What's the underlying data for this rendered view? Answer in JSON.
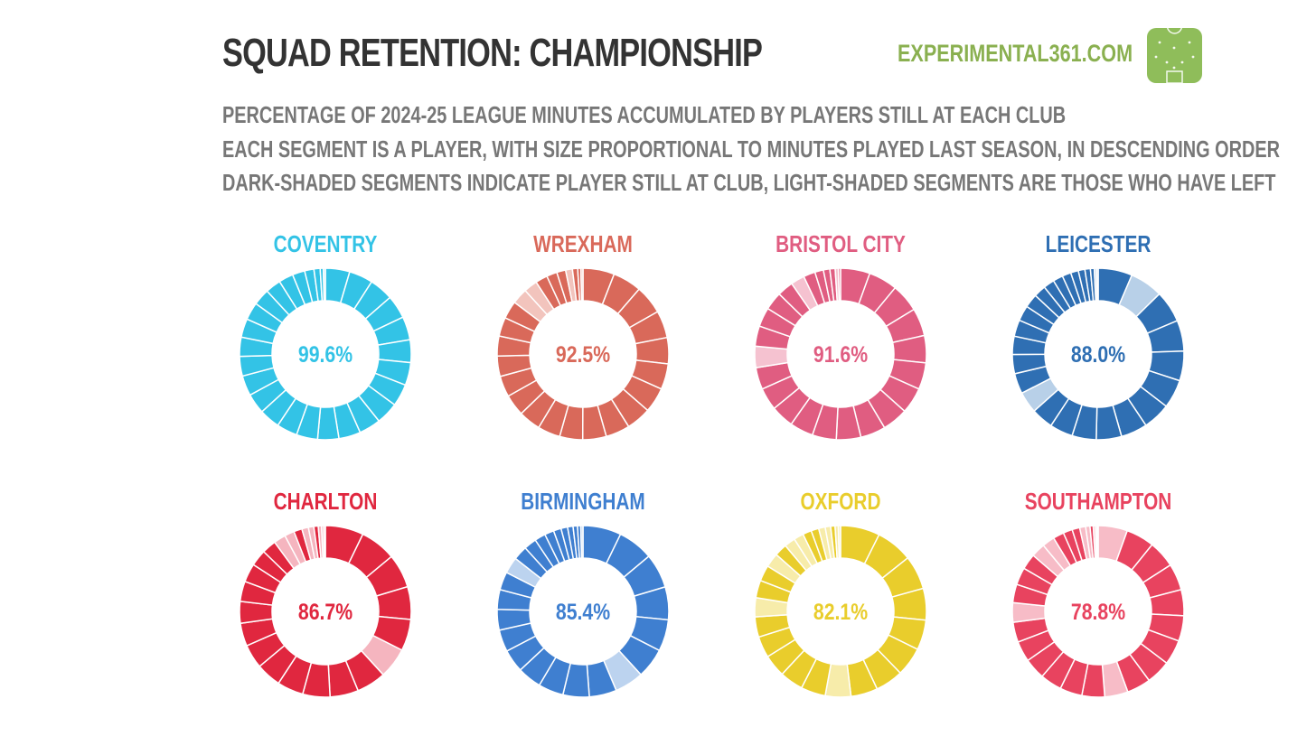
{
  "header": {
    "title": "SQUAD RETENTION: CHAMPIONSHIP",
    "brand": "EXPERIMENTAL361.COM",
    "subtitle_lines": [
      "PERCENTAGE OF 2024-25 LEAGUE MINUTES ACCUMULATED BY PLAYERS STILL AT EACH CLUB",
      "EACH SEGMENT IS A PLAYER, WITH SIZE PROPORTIONAL TO MINUTES PLAYED LAST SEASON, IN DESCENDING ORDER",
      "DARK-SHADED SEGMENTS INDICATE PLAYER STILL AT CLUB, LIGHT-SHADED SEGMENTS ARE THOSE WHO HAVE LEFT"
    ],
    "colors": {
      "title": "#333333",
      "subtitle": "#777777",
      "brand": "#8ab050",
      "logo": "#8fbd5a"
    }
  },
  "chart_data": [
    {
      "type": "pie",
      "team": "COVENTRY",
      "label": "99.6%",
      "retained_pct": 99.6,
      "color": "#33c3e6",
      "light": "#bfe9f5",
      "segments": [
        4.7,
        4.6,
        4.6,
        4.5,
        4.5,
        4.4,
        4.4,
        4.3,
        4.3,
        4.2,
        4.2,
        4.1,
        4.1,
        4.0,
        4.0,
        3.9,
        3.9,
        3.8,
        3.7,
        3.6,
        3.4,
        3.2,
        3.0,
        2.8,
        2.4,
        1.8,
        1.2,
        0.6,
        0.4
      ],
      "status": [
        1,
        1,
        1,
        1,
        1,
        1,
        1,
        1,
        1,
        1,
        1,
        1,
        1,
        1,
        1,
        1,
        1,
        1,
        1,
        1,
        1,
        1,
        1,
        1,
        1,
        1,
        1,
        1,
        0
      ]
    },
    {
      "type": "pie",
      "team": "WREXHAM",
      "label": "92.5%",
      "retained_pct": 92.5,
      "color": "#d9695a",
      "light": "#f2c4bd",
      "segments": [
        6.0,
        5.5,
        5.5,
        5.2,
        5.0,
        4.9,
        4.8,
        4.7,
        4.6,
        4.5,
        4.4,
        4.3,
        4.2,
        4.1,
        4.0,
        3.9,
        3.8,
        3.6,
        3.4,
        3.0,
        2.6,
        2.3,
        2.0,
        1.7,
        1.3,
        1.0,
        0.6,
        0.4
      ],
      "status": [
        1,
        1,
        1,
        1,
        1,
        1,
        1,
        1,
        1,
        1,
        1,
        1,
        1,
        1,
        1,
        1,
        1,
        1,
        1,
        0,
        0,
        1,
        1,
        1,
        0,
        1,
        1,
        0
      ]
    },
    {
      "type": "pie",
      "team": "BRISTOL CITY",
      "label": "91.6%",
      "retained_pct": 91.6,
      "color": "#e05d81",
      "light": "#f5c2d0",
      "segments": [
        5.5,
        5.4,
        5.3,
        5.2,
        5.1,
        5.0,
        4.9,
        4.8,
        4.7,
        4.6,
        4.5,
        4.4,
        4.3,
        4.2,
        4.1,
        4.0,
        3.8,
        3.6,
        3.4,
        3.0,
        2.6,
        2.2,
        1.6,
        1.2,
        1.0,
        0.6,
        0.4
      ],
      "status": [
        1,
        1,
        1,
        1,
        1,
        1,
        1,
        1,
        1,
        1,
        1,
        1,
        1,
        1,
        1,
        0,
        1,
        1,
        1,
        1,
        0,
        1,
        1,
        1,
        1,
        0,
        1
      ]
    },
    {
      "type": "pie",
      "team": "LEICESTER",
      "label": "88.0%",
      "retained_pct": 88.0,
      "color": "#2f6fb3",
      "light": "#b8d0e8",
      "segments": [
        6.2,
        6.0,
        5.8,
        5.6,
        5.4,
        5.2,
        5.0,
        4.8,
        4.6,
        4.4,
        4.2,
        4.0,
        3.9,
        3.7,
        3.5,
        3.3,
        3.0,
        2.8,
        2.5,
        2.2,
        2.0,
        1.8,
        1.6,
        1.4,
        1.2,
        1.0,
        0.7,
        0.4,
        0.3
      ],
      "status": [
        1,
        0,
        1,
        1,
        1,
        1,
        1,
        1,
        1,
        1,
        1,
        1,
        0,
        1,
        1,
        1,
        1,
        1,
        1,
        1,
        1,
        1,
        1,
        1,
        1,
        1,
        1,
        0,
        0
      ]
    },
    {
      "type": "pie",
      "team": "CHARLTON",
      "label": "86.7%",
      "retained_pct": 86.7,
      "color": "#e0273f",
      "light": "#f5b5bf",
      "segments": [
        7.0,
        6.6,
        6.2,
        6.0,
        5.8,
        5.6,
        5.4,
        5.2,
        5.0,
        4.8,
        4.6,
        4.4,
        4.2,
        4.0,
        3.7,
        3.4,
        3.0,
        2.6,
        2.2,
        1.8,
        1.5,
        1.2,
        1.0,
        0.8,
        0.6,
        0.4,
        0.3
      ],
      "status": [
        1,
        1,
        1,
        1,
        1,
        0,
        1,
        1,
        1,
        1,
        1,
        1,
        1,
        1,
        1,
        1,
        1,
        1,
        0,
        0,
        1,
        0,
        0,
        1,
        0,
        0,
        0
      ]
    },
    {
      "type": "pie",
      "team": "BIRMINGHAM",
      "label": "85.4%",
      "retained_pct": 85.4,
      "color": "#3f7fd0",
      "light": "#bcd3ef",
      "segments": [
        7.0,
        6.5,
        6.3,
        6.0,
        5.8,
        5.5,
        5.3,
        5.0,
        4.8,
        4.6,
        4.4,
        4.2,
        4.0,
        3.8,
        3.6,
        3.3,
        3.0,
        2.6,
        2.3,
        2.0,
        1.7,
        1.4,
        1.2,
        1.0,
        0.8,
        0.6,
        0.4
      ],
      "status": [
        1,
        1,
        1,
        1,
        1,
        1,
        0,
        1,
        1,
        1,
        1,
        1,
        1,
        1,
        1,
        1,
        0,
        1,
        1,
        1,
        1,
        1,
        1,
        1,
        1,
        1,
        0
      ]
    },
    {
      "type": "pie",
      "team": "OXFORD",
      "label": "82.1%",
      "retained_pct": 82.1,
      "color": "#e9cd2c",
      "light": "#f7ecaa",
      "segments": [
        7.2,
        6.7,
        6.2,
        5.8,
        5.5,
        5.3,
        5.1,
        4.9,
        4.7,
        4.5,
        4.3,
        4.1,
        3.9,
        3.7,
        3.5,
        3.2,
        2.9,
        2.6,
        2.3,
        2.0,
        1.8,
        1.6,
        1.4,
        1.2,
        1.0,
        0.8,
        0.6,
        0.4
      ],
      "status": [
        1,
        1,
        1,
        1,
        1,
        1,
        1,
        1,
        0,
        1,
        1,
        1,
        1,
        1,
        0,
        1,
        1,
        0,
        1,
        0,
        0,
        1,
        1,
        0,
        0,
        1,
        0,
        0
      ]
    },
    {
      "type": "pie",
      "team": "SOUTHAMPTON",
      "label": "78.8%",
      "retained_pct": 78.8,
      "color": "#e8435f",
      "light": "#f7bcc7",
      "segments": [
        5.4,
        5.2,
        5.0,
        4.9,
        4.8,
        4.7,
        4.6,
        4.5,
        4.4,
        4.3,
        4.2,
        4.1,
        4.0,
        3.9,
        3.8,
        3.7,
        3.6,
        3.4,
        3.2,
        2.9,
        2.6,
        2.3,
        2.0,
        1.7,
        1.4,
        1.1,
        0.8,
        0.6,
        0.4,
        0.3,
        0.2
      ],
      "status": [
        0,
        1,
        1,
        1,
        1,
        1,
        1,
        1,
        1,
        0,
        1,
        1,
        1,
        1,
        1,
        1,
        0,
        1,
        1,
        1,
        0,
        0,
        1,
        1,
        1,
        0,
        0,
        1,
        0,
        0,
        0
      ]
    }
  ]
}
